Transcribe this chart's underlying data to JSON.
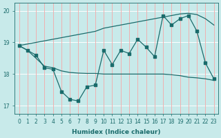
{
  "xlabel": "Humidex (Indice chaleur)",
  "background_color": "#c8eaea",
  "grid_color_h": "#ffffff",
  "grid_color_v": "#f0b0b0",
  "line_color": "#1a6b6b",
  "xlim_min": -0.5,
  "xlim_max": 23.5,
  "ylim_min": 16.75,
  "ylim_max": 20.25,
  "yticks": [
    17,
    18,
    19,
    20
  ],
  "xticks": [
    0,
    1,
    2,
    3,
    4,
    5,
    6,
    7,
    8,
    9,
    10,
    11,
    12,
    13,
    14,
    15,
    16,
    17,
    18,
    19,
    20,
    21,
    22,
    23
  ],
  "x": [
    0,
    1,
    2,
    3,
    4,
    5,
    6,
    7,
    8,
    9,
    10,
    11,
    12,
    13,
    14,
    15,
    16,
    17,
    18,
    19,
    20,
    21,
    22,
    23
  ],
  "line_main": [
    18.9,
    18.75,
    18.6,
    18.2,
    18.15,
    17.45,
    17.2,
    17.15,
    17.6,
    17.65,
    18.75,
    18.3,
    18.75,
    18.65,
    19.1,
    18.85,
    18.55,
    19.85,
    19.55,
    19.75,
    19.85,
    19.35,
    18.35,
    17.85
  ],
  "line_upper": [
    18.9,
    18.95,
    19.0,
    19.05,
    19.1,
    19.15,
    19.2,
    19.25,
    19.3,
    19.35,
    19.45,
    19.5,
    19.55,
    19.6,
    19.65,
    19.7,
    19.75,
    19.8,
    19.85,
    19.9,
    19.92,
    19.88,
    19.75,
    19.55
  ],
  "line_lower": [
    18.9,
    18.75,
    18.5,
    18.25,
    18.2,
    18.1,
    18.05,
    18.03,
    18.02,
    18.02,
    18.0,
    18.0,
    18.0,
    18.0,
    18.0,
    18.0,
    18.0,
    18.0,
    17.98,
    17.95,
    17.9,
    17.88,
    17.85,
    17.8
  ]
}
